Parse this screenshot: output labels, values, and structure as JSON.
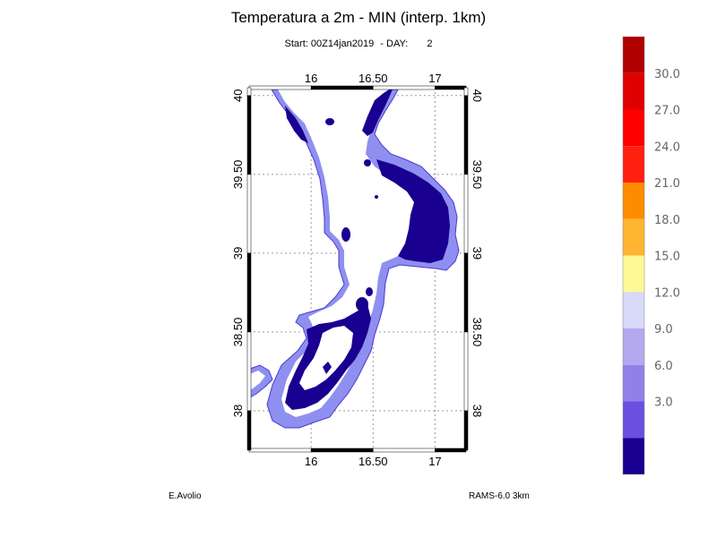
{
  "title": "Temperatura a 2m - MIN (interp. 1km)",
  "subtitle": {
    "start": "Start: 00Z14jan2019",
    "day_label": "- DAY:",
    "day_value": "2"
  },
  "footer": {
    "author": "E.Avolio",
    "model": "RAMS-6.0 3km"
  },
  "map": {
    "lon_range": [
      15.5,
      17.25
    ],
    "lat_range": [
      37.75,
      40.05
    ],
    "lon_ticks": [
      {
        "value": 16,
        "label": "16"
      },
      {
        "value": 16.5,
        "label": "16.50"
      },
      {
        "value": 17,
        "label": "17"
      }
    ],
    "lat_ticks": [
      {
        "value": 40,
        "label": "40"
      },
      {
        "value": 39.5,
        "label": "39.50"
      },
      {
        "value": 39,
        "label": "39"
      },
      {
        "value": 38.5,
        "label": "38.50"
      },
      {
        "value": 38,
        "label": "38"
      }
    ],
    "grid": true,
    "land_color_note": "interior white"
  },
  "colorbar": {
    "labels": [
      "30.0",
      "27.0",
      "24.0",
      "21.0",
      "18.0",
      "15.0",
      "12.0",
      "9.0",
      "6.0",
      "3.0"
    ],
    "colors": [
      "#b00000",
      "#e00000",
      "#ff0000",
      "#ff2010",
      "#ff8c00",
      "#ffb432",
      "#fff896",
      "#d8d8f8",
      "#b4a8f0",
      "#9080e8",
      "#6a50e0",
      "#1a0090"
    ]
  }
}
